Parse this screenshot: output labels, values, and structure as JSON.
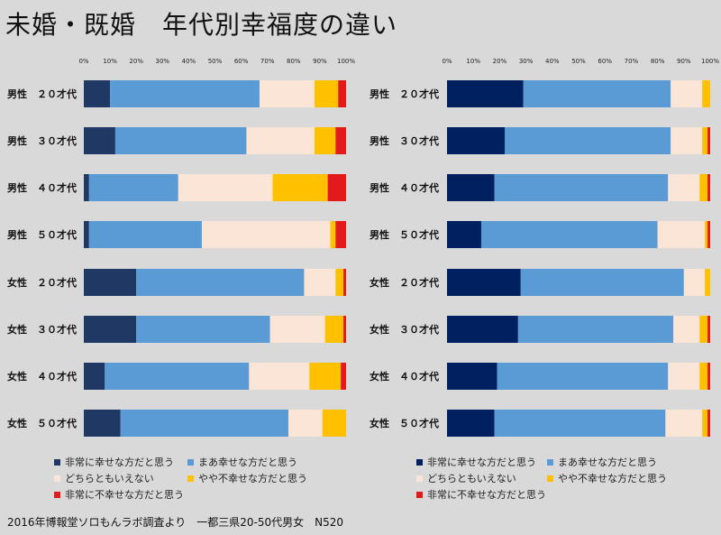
{
  "title": "未婚・既婚　年代別幸福度の違い",
  "source": "2016年博報堂ソロもんラボ調査より　一都三県20-50代男女　N520",
  "colors": [
    "#1f3864",
    "#5b9bd5",
    "#fbe5d6",
    "#ffc000",
    "#e31a1c"
  ],
  "right_first_color": "#002060",
  "chart_data": [
    {
      "type": "bar",
      "orientation": "horizontal",
      "stacked": "percent",
      "xlim": [
        0,
        100
      ],
      "ticks": [
        "0%",
        "10%",
        "20%",
        "30%",
        "40%",
        "50%",
        "60%",
        "70%",
        "80%",
        "90%",
        "100%"
      ],
      "categories": [
        "男性　２０才代",
        "男性　３０才代",
        "男性　４０才代",
        "男性　５０才代",
        "女性　２０才代",
        "女性　３０才代",
        "女性　４０才代",
        "女性　５０才代"
      ],
      "series": [
        {
          "name": "非常に幸せな方だと思う",
          "values": [
            10,
            12,
            2,
            2,
            20,
            20,
            8,
            14
          ]
        },
        {
          "name": "まあ幸せな方だと思う",
          "values": [
            57,
            50,
            34,
            43,
            64,
            51,
            55,
            64
          ]
        },
        {
          "name": "どちらともいえない",
          "values": [
            21,
            26,
            36,
            49,
            12,
            21,
            23,
            13
          ]
        },
        {
          "name": "やや不幸せな方だと思う",
          "values": [
            9,
            8,
            21,
            2,
            3,
            7,
            12,
            9
          ]
        },
        {
          "name": "非常に不幸せな方だと思う",
          "values": [
            3,
            4,
            7,
            4,
            1,
            1,
            2,
            0
          ]
        }
      ],
      "legend": "bottom"
    },
    {
      "type": "bar",
      "orientation": "horizontal",
      "stacked": "percent",
      "xlim": [
        0,
        100
      ],
      "ticks": [
        "0%",
        "10%",
        "20%",
        "30%",
        "40%",
        "50%",
        "60%",
        "70%",
        "80%",
        "90%",
        "100%"
      ],
      "categories": [
        "男性　２０才代",
        "男性　３０才代",
        "男性　４０才代",
        "男性　５０才代",
        "女性　２０才代",
        "女性　３０才代",
        "女性　４０才代",
        "女性　５０才代"
      ],
      "series": [
        {
          "name": "非常に幸せな方だと思う",
          "values": [
            29,
            22,
            18,
            13,
            28,
            27,
            19,
            18
          ]
        },
        {
          "name": "まあ幸せな方だと思う",
          "values": [
            56,
            63,
            66,
            67,
            62,
            59,
            65,
            65
          ]
        },
        {
          "name": "どちらともいえない",
          "values": [
            12,
            12,
            12,
            18,
            8,
            10,
            12,
            14
          ]
        },
        {
          "name": "やや不幸せな方だと思う",
          "values": [
            3,
            2,
            3,
            1,
            2,
            3,
            3,
            2
          ]
        },
        {
          "name": "非常に不幸せな方だと思う",
          "values": [
            0,
            1,
            1,
            1,
            0,
            1,
            1,
            1
          ]
        }
      ],
      "legend": "bottom"
    }
  ]
}
